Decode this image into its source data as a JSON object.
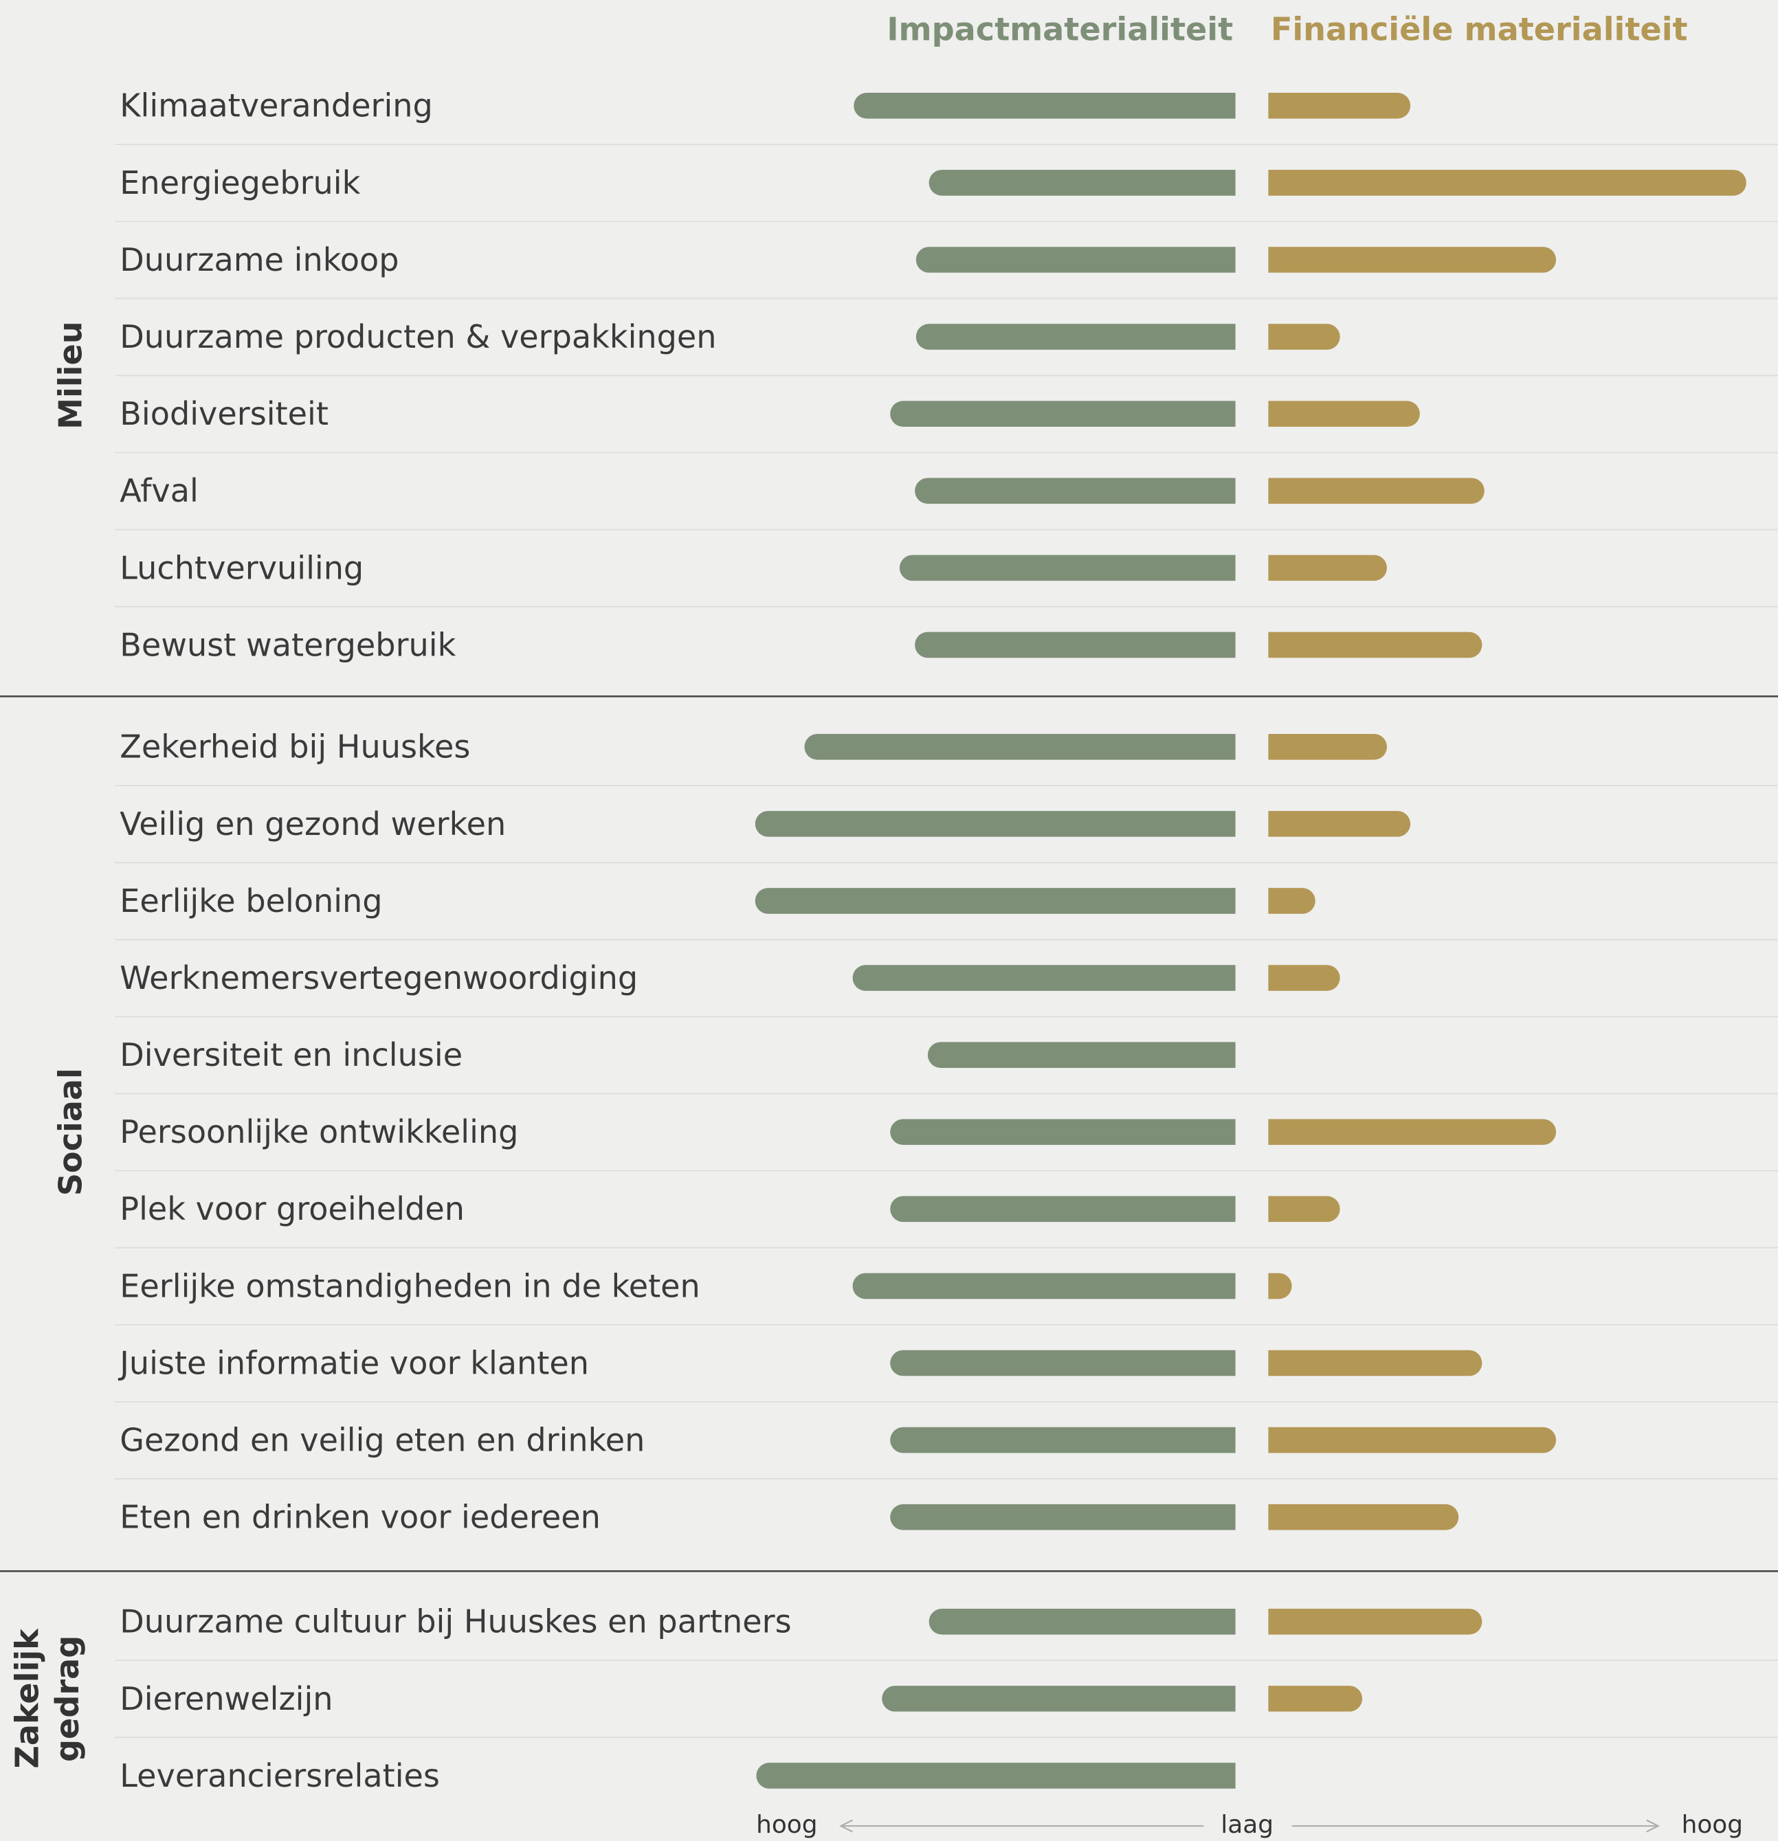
{
  "chart_data": {
    "type": "diverging_bar",
    "categories": [
      "Klimaatverandering",
      "Energiegebruik",
      "Duurzame inkoop",
      "Duurzame producten & verpakkingen",
      "Biodiversiteit",
      "Afval",
      "Luchtvervuiling",
      "Bewust watergebruik",
      "Zekerheid bij Huuskes",
      "Veilig en gezond werken",
      "Eerlijke beloning",
      "Werknemersvertegenwoordiging",
      "Diversiteit en inclusie",
      "Persoonlijke ontwikkeling",
      "Plek voor groeihelden",
      "Eerlijke omstandigheden in de keten",
      "Juiste informatie voor klanten",
      "Gezond en veilig eten en drinken",
      "Eten en drinken voor iedereen",
      "Duurzame cultuur bij Huuskes en partners",
      "Dierenwelzijn",
      "Leveranciersrelaties"
    ],
    "groups": [
      {
        "label": "Milieu",
        "count": 8
      },
      {
        "label": "Sociaal",
        "count": 11
      },
      {
        "label": "Zakelijk gedrag",
        "count": 3
      }
    ],
    "series": [
      {
        "name": "Impactmaterialiteit",
        "color": "#7e8f78",
        "side": "left",
        "values": [
          325,
          261,
          272,
          272,
          294,
          273,
          286,
          273,
          367,
          409,
          409,
          326,
          262,
          294,
          294,
          326,
          294,
          294,
          294,
          261,
          301,
          408
        ]
      },
      {
        "name": "Financiële materialiteit",
        "color": "#b39755",
        "side": "right",
        "values": [
          121,
          407,
          245,
          61,
          129,
          184,
          101,
          182,
          101,
          121,
          40,
          61,
          null,
          245,
          61,
          20,
          182,
          245,
          162,
          182,
          80,
          null
        ]
      }
    ],
    "xlim": [
      0,
      410
    ],
    "axis_labels": [
      "hoog",
      "laag",
      "hoog"
    ]
  }
}
